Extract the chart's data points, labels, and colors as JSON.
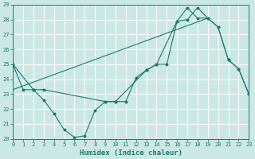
{
  "xlabel": "Humidex (Indice chaleur)",
  "bg_color": "#cce8e4",
  "line_color": "#1a7a6e",
  "grid_color": "#ffffff",
  "ylim": [
    20,
    29
  ],
  "xlim": [
    0,
    23
  ],
  "yticks": [
    20,
    21,
    22,
    23,
    24,
    25,
    26,
    27,
    28,
    29
  ],
  "xticks": [
    0,
    1,
    2,
    3,
    4,
    5,
    6,
    7,
    8,
    9,
    10,
    11,
    12,
    13,
    14,
    15,
    16,
    17,
    18,
    19,
    20,
    21,
    22,
    23
  ],
  "series1_x": [
    0,
    1,
    2,
    3,
    4,
    5,
    6,
    7,
    8,
    9,
    10,
    11,
    12,
    13,
    14,
    15,
    16,
    17,
    18,
    19,
    20,
    21,
    22,
    23
  ],
  "series1_y": [
    25.0,
    23.3,
    23.3,
    22.6,
    21.7,
    20.6,
    20.1,
    20.2,
    21.9,
    22.5,
    22.5,
    22.5,
    24.1,
    24.6,
    25.0,
    25.0,
    27.9,
    28.0,
    28.8,
    28.1,
    27.5,
    25.3,
    24.7,
    23.0
  ],
  "series2_x": [
    0,
    2,
    3,
    9,
    10,
    13,
    14,
    16,
    17,
    18,
    19,
    20,
    21,
    22,
    23
  ],
  "series2_y": [
    25.0,
    23.3,
    23.3,
    22.5,
    22.5,
    24.6,
    25.0,
    27.9,
    28.8,
    28.1,
    28.1,
    27.5,
    25.3,
    24.7,
    23.0
  ],
  "series3_x": [
    0,
    19
  ],
  "series3_y": [
    23.3,
    28.1
  ]
}
